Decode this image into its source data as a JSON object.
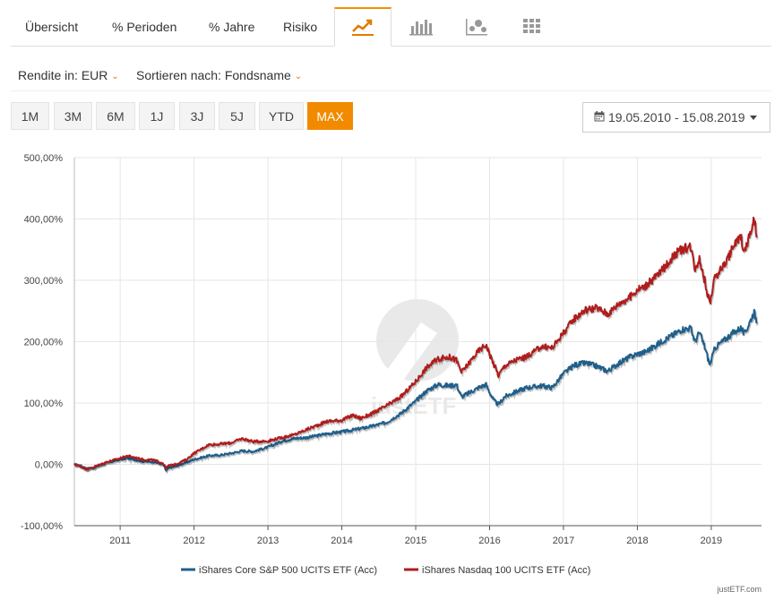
{
  "tabs": {
    "items": [
      {
        "label": "Übersicht"
      },
      {
        "label": "% Perioden"
      },
      {
        "label": "% Jahre"
      },
      {
        "label": "Risiko"
      }
    ],
    "icon_tabs": [
      "line-chart-icon",
      "bar-chart-icon",
      "scatter-chart-icon",
      "grid-chart-icon"
    ],
    "active_icon_tab": "line-chart-icon"
  },
  "filters": {
    "rendite_label": "Rendite in: EUR",
    "sort_label": "Sortieren nach: Fondsname"
  },
  "periods": {
    "buttons": [
      "1M",
      "3M",
      "6M",
      "1J",
      "3J",
      "5J",
      "YTD",
      "MAX"
    ],
    "active": "MAX"
  },
  "date_range": "19.05.2010 - 15.08.2019",
  "colors": {
    "accent": "#f28a00",
    "series_sp500": "#1f5f8b",
    "series_nasdaq": "#b01c1c",
    "grid": "#e6e6e6",
    "axis": "#555555"
  },
  "chart_data": {
    "type": "line",
    "title": "",
    "xlabel": "",
    "ylabel": "",
    "x_start": 2010.38,
    "x_end": 2019.62,
    "xlim": [
      2010.38,
      2019.68
    ],
    "ylim": [
      -100,
      500
    ],
    "y_ticks": [
      500,
      400,
      300,
      200,
      100,
      0,
      -100
    ],
    "y_tick_labels": [
      "500,00%",
      "400,00%",
      "300,00%",
      "200,00%",
      "100,00%",
      "0,00%",
      "-100,00%"
    ],
    "x_ticks": [
      2011,
      2012,
      2013,
      2014,
      2015,
      2016,
      2017,
      2018,
      2019
    ],
    "x_tick_labels": [
      "2011",
      "2012",
      "2013",
      "2014",
      "2015",
      "2016",
      "2017",
      "2018",
      "2019"
    ],
    "grid": true,
    "legend_position": "bottom",
    "watermark": "justETF",
    "series": [
      {
        "name": "iShares Core S&P 500 UCITS ETF (Acc)",
        "color": "#1f5f8b",
        "anchors": [
          [
            2010.38,
            0
          ],
          [
            2010.46,
            -2
          ],
          [
            2010.55,
            -7
          ],
          [
            2010.65,
            -5
          ],
          [
            2010.8,
            2
          ],
          [
            2011.0,
            8
          ],
          [
            2011.1,
            10
          ],
          [
            2011.3,
            5
          ],
          [
            2011.45,
            4
          ],
          [
            2011.58,
            0
          ],
          [
            2011.62,
            -10
          ],
          [
            2011.66,
            -6
          ],
          [
            2011.75,
            -3
          ],
          [
            2011.9,
            3
          ],
          [
            2012.0,
            8
          ],
          [
            2012.2,
            14
          ],
          [
            2012.35,
            15
          ],
          [
            2012.5,
            18
          ],
          [
            2012.65,
            22
          ],
          [
            2012.8,
            21
          ],
          [
            2013.0,
            28
          ],
          [
            2013.2,
            38
          ],
          [
            2013.35,
            42
          ],
          [
            2013.55,
            44
          ],
          [
            2013.8,
            50
          ],
          [
            2014.0,
            53
          ],
          [
            2014.2,
            57
          ],
          [
            2014.4,
            62
          ],
          [
            2014.6,
            68
          ],
          [
            2014.8,
            83
          ],
          [
            2015.0,
            103
          ],
          [
            2015.15,
            120
          ],
          [
            2015.3,
            130
          ],
          [
            2015.45,
            128
          ],
          [
            2015.55,
            130
          ],
          [
            2015.62,
            110
          ],
          [
            2015.7,
            115
          ],
          [
            2015.85,
            125
          ],
          [
            2015.95,
            130
          ],
          [
            2016.05,
            105
          ],
          [
            2016.12,
            97
          ],
          [
            2016.2,
            110
          ],
          [
            2016.35,
            118
          ],
          [
            2016.5,
            125
          ],
          [
            2016.7,
            128
          ],
          [
            2016.85,
            125
          ],
          [
            2017.0,
            148
          ],
          [
            2017.15,
            162
          ],
          [
            2017.3,
            165
          ],
          [
            2017.45,
            160
          ],
          [
            2017.6,
            152
          ],
          [
            2017.75,
            165
          ],
          [
            2017.9,
            175
          ],
          [
            2018.0,
            180
          ],
          [
            2018.1,
            183
          ],
          [
            2018.2,
            190
          ],
          [
            2018.35,
            202
          ],
          [
            2018.5,
            212
          ],
          [
            2018.6,
            220
          ],
          [
            2018.72,
            222
          ],
          [
            2018.78,
            200
          ],
          [
            2018.84,
            215
          ],
          [
            2018.92,
            188
          ],
          [
            2018.98,
            162
          ],
          [
            2019.05,
            190
          ],
          [
            2019.2,
            205
          ],
          [
            2019.3,
            215
          ],
          [
            2019.4,
            222
          ],
          [
            2019.45,
            212
          ],
          [
            2019.55,
            240
          ],
          [
            2019.58,
            248
          ],
          [
            2019.62,
            232
          ]
        ]
      },
      {
        "name": "iShares Nasdaq 100 UCITS ETF (Acc)",
        "color": "#b01c1c",
        "anchors": [
          [
            2010.38,
            0
          ],
          [
            2010.46,
            -3
          ],
          [
            2010.55,
            -8
          ],
          [
            2010.65,
            -4
          ],
          [
            2010.8,
            3
          ],
          [
            2011.0,
            10
          ],
          [
            2011.1,
            14
          ],
          [
            2011.3,
            8
          ],
          [
            2011.45,
            7
          ],
          [
            2011.58,
            2
          ],
          [
            2011.62,
            -6
          ],
          [
            2011.66,
            -2
          ],
          [
            2011.75,
            0
          ],
          [
            2011.9,
            8
          ],
          [
            2012.0,
            18
          ],
          [
            2012.2,
            32
          ],
          [
            2012.35,
            33
          ],
          [
            2012.5,
            35
          ],
          [
            2012.65,
            42
          ],
          [
            2012.8,
            37
          ],
          [
            2013.0,
            38
          ],
          [
            2013.2,
            44
          ],
          [
            2013.35,
            48
          ],
          [
            2013.55,
            58
          ],
          [
            2013.8,
            70
          ],
          [
            2014.0,
            72
          ],
          [
            2014.15,
            80
          ],
          [
            2014.25,
            75
          ],
          [
            2014.4,
            82
          ],
          [
            2014.6,
            95
          ],
          [
            2014.8,
            110
          ],
          [
            2015.0,
            135
          ],
          [
            2015.15,
            158
          ],
          [
            2015.3,
            172
          ],
          [
            2015.45,
            175
          ],
          [
            2015.55,
            170
          ],
          [
            2015.62,
            150
          ],
          [
            2015.7,
            162
          ],
          [
            2015.85,
            185
          ],
          [
            2015.95,
            195
          ],
          [
            2016.05,
            165
          ],
          [
            2016.12,
            145
          ],
          [
            2016.2,
            160
          ],
          [
            2016.35,
            170
          ],
          [
            2016.5,
            175
          ],
          [
            2016.7,
            192
          ],
          [
            2016.85,
            190
          ],
          [
            2017.0,
            215
          ],
          [
            2017.15,
            238
          ],
          [
            2017.3,
            252
          ],
          [
            2017.45,
            255
          ],
          [
            2017.6,
            245
          ],
          [
            2017.75,
            262
          ],
          [
            2017.9,
            272
          ],
          [
            2018.0,
            285
          ],
          [
            2018.1,
            290
          ],
          [
            2018.2,
            300
          ],
          [
            2018.35,
            318
          ],
          [
            2018.5,
            342
          ],
          [
            2018.6,
            350
          ],
          [
            2018.72,
            355
          ],
          [
            2018.78,
            320
          ],
          [
            2018.84,
            335
          ],
          [
            2018.92,
            295
          ],
          [
            2018.98,
            262
          ],
          [
            2019.05,
            305
          ],
          [
            2019.2,
            330
          ],
          [
            2019.3,
            355
          ],
          [
            2019.4,
            372
          ],
          [
            2019.45,
            345
          ],
          [
            2019.55,
            385
          ],
          [
            2019.58,
            398
          ],
          [
            2019.62,
            372
          ]
        ]
      }
    ]
  },
  "footer": {
    "credit": "justETF.com"
  }
}
